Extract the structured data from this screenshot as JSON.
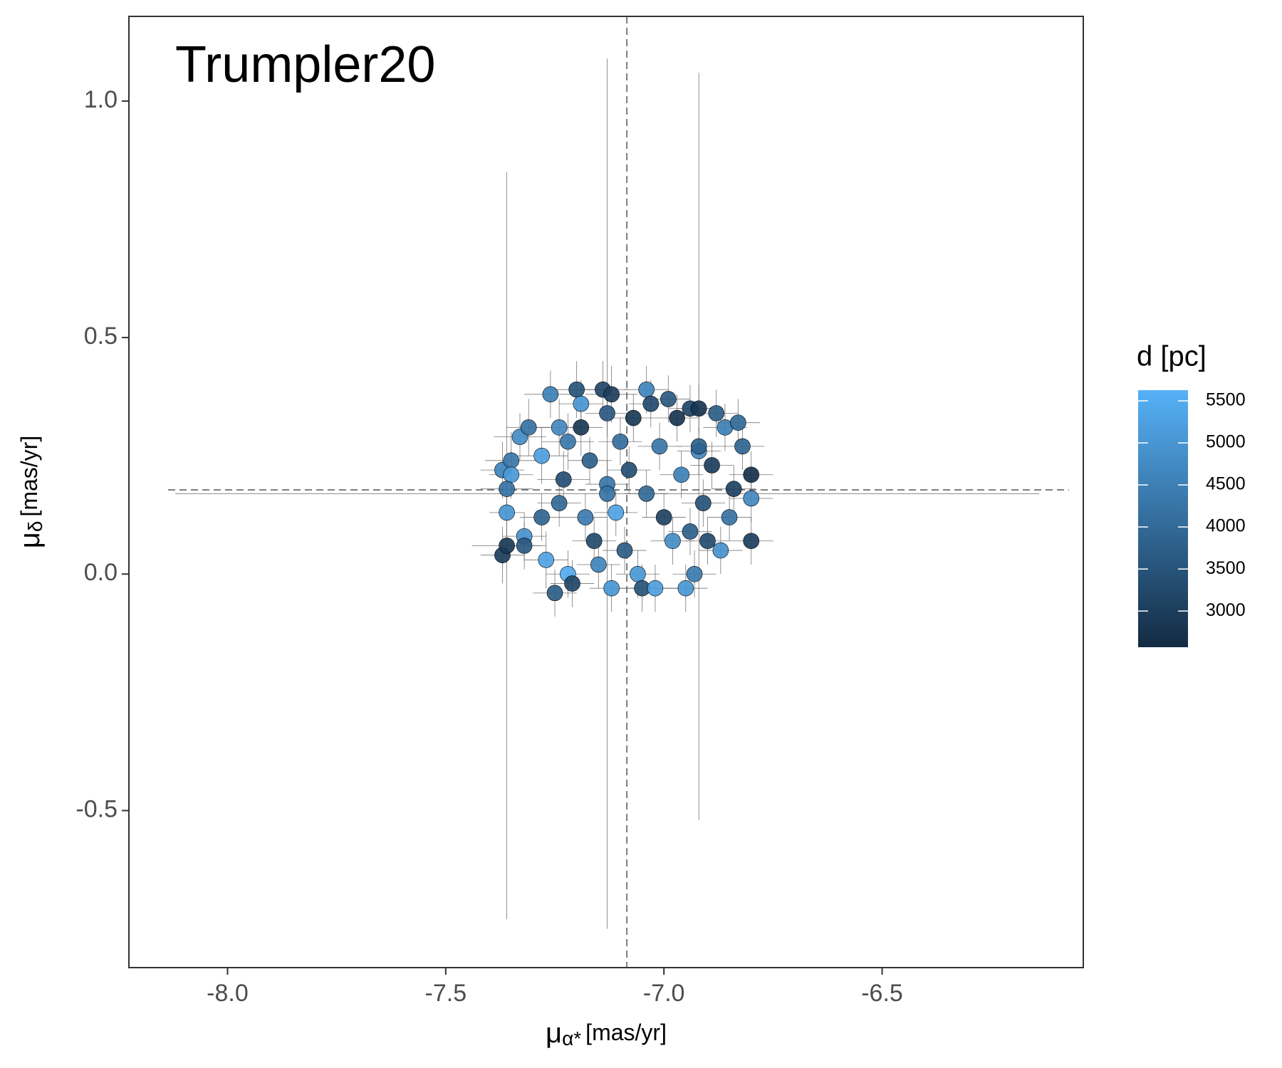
{
  "chart_data": {
    "type": "scatter",
    "title": "Trumpler20",
    "xlabel": {
      "symbol": "μ",
      "sub": "α*",
      "unit": "[mas/yr]"
    },
    "ylabel": {
      "symbol": "μ",
      "sub": "δ",
      "unit": "[mas/yr]"
    },
    "xlim": [
      -8.226,
      -6.039
    ],
    "ylim": [
      -0.832,
      1.179
    ],
    "xticks": [
      {
        "value": -8,
        "label": "-8.0"
      },
      -7.5,
      {
        "value": -7,
        "label": "-7.0"
      },
      -6.5
    ],
    "yticks": [
      -0.5,
      {
        "value": 0,
        "label": "0.0"
      },
      0.5,
      {
        "value": 1,
        "label": "1.0"
      }
    ],
    "vline": -7.085,
    "hline": 0.178,
    "colorbar": {
      "title": "d [pc]",
      "lim": [
        2570,
        5627
      ],
      "ticks": [
        3000,
        3500,
        4000,
        4500,
        5000,
        5500
      ],
      "colors": [
        "#132B43",
        "#56B1F7"
      ]
    },
    "x": [
      -7.37,
      -7.36,
      -7.37,
      -7.36,
      -7.35,
      -7.35,
      -7.36,
      -7.33,
      -7.31,
      -7.32,
      -7.32,
      -7.28,
      -7.27,
      -7.26,
      -7.25,
      -7.24,
      -7.24,
      -7.23,
      -7.22,
      -7.21,
      -7.2,
      -7.19,
      -7.19,
      -7.18,
      -7.17,
      -7.16,
      -7.15,
      -7.14,
      -7.13,
      -7.13,
      -7.12,
      -7.12,
      -7.11,
      -7.1,
      -7.09,
      -7.08,
      -7.07,
      -7.06,
      -7.05,
      -7.04,
      -7.04,
      -7.03,
      -7.02,
      -7.01,
      -7.0,
      -6.99,
      -6.98,
      -6.97,
      -6.96,
      -6.95,
      -6.94,
      -6.94,
      -6.93,
      -6.92,
      -6.92,
      -6.91,
      -6.9,
      -6.89,
      -6.88,
      -6.87,
      -6.86,
      -6.85,
      -6.84,
      -6.83,
      -6.82,
      -6.8,
      -6.8,
      -6.8,
      -7.22,
      -7.28,
      -7.13,
      -6.92
    ],
    "y": [
      0.04,
      0.06,
      0.22,
      0.13,
      0.24,
      0.21,
      0.18,
      0.29,
      0.31,
      0.08,
      0.06,
      0.25,
      0.03,
      0.38,
      -0.04,
      0.31,
      0.15,
      0.2,
      0.0,
      -0.02,
      0.39,
      0.36,
      0.31,
      0.12,
      0.24,
      0.07,
      0.02,
      0.39,
      0.34,
      0.19,
      -0.03,
      0.38,
      0.13,
      0.28,
      0.05,
      0.22,
      0.33,
      0.0,
      -0.03,
      0.39,
      0.17,
      0.36,
      -0.03,
      0.27,
      0.12,
      0.37,
      0.07,
      0.33,
      0.21,
      -0.03,
      0.35,
      0.09,
      0.0,
      0.35,
      0.26,
      0.15,
      0.07,
      0.23,
      0.34,
      0.05,
      0.31,
      0.12,
      0.18,
      0.32,
      0.27,
      0.21,
      0.16,
      0.07,
      0.28,
      0.12,
      0.17,
      0.27
    ],
    "d": [
      3000,
      2900,
      4600,
      5000,
      4300,
      5100,
      4200,
      4800,
      4200,
      4900,
      3600,
      5200,
      5300,
      4500,
      3700,
      4700,
      4000,
      3400,
      5500,
      3200,
      3500,
      5000,
      2900,
      4400,
      3800,
      3300,
      4600,
      3200,
      3600,
      4300,
      5000,
      3000,
      5300,
      4100,
      3700,
      3400,
      2900,
      5100,
      3500,
      4600,
      4000,
      3300,
      5200,
      4300,
      3100,
      3600,
      4800,
      2800,
      4500,
      5000,
      3200,
      3800,
      4400,
      2800,
      4700,
      3500,
      3300,
      3000,
      3700,
      4900,
      4500,
      4200,
      3100,
      4000,
      3900,
      2700,
      4700,
      3000,
      4300,
      3900,
      4200,
      3800
    ],
    "xerr": [
      0.05,
      0.08,
      0.05,
      0.04,
      0.06,
      0.05,
      0.06,
      0.06,
      0.05,
      0.05,
      0.05,
      0.06,
      0.05,
      0.06,
      0.05,
      0.05,
      0.05,
      0.06,
      0.05,
      0.05,
      0.06,
      0.05,
      0.05,
      0.05,
      0.05,
      0.05,
      0.05,
      0.06,
      0.05,
      0.05,
      0.05,
      0.06,
      0.05,
      0.05,
      0.05,
      0.05,
      0.05,
      0.05,
      0.05,
      0.05,
      0.05,
      0.05,
      0.05,
      0.05,
      0.05,
      0.05,
      0.05,
      0.05,
      0.05,
      0.05,
      0.05,
      0.05,
      0.05,
      0.05,
      0.05,
      0.05,
      0.05,
      0.05,
      0.05,
      0.05,
      0.05,
      0.05,
      0.05,
      0.05,
      0.05,
      0.05,
      0.05,
      0.05,
      0.06,
      0.05,
      0.99,
      0.05
    ],
    "yerr": [
      0.06,
      0.79,
      0.06,
      0.05,
      0.06,
      0.05,
      0.05,
      0.05,
      0.06,
      0.05,
      0.05,
      0.06,
      0.06,
      0.05,
      0.05,
      0.06,
      0.05,
      0.06,
      0.05,
      0.05,
      0.06,
      0.05,
      0.06,
      0.05,
      0.05,
      0.05,
      0.05,
      0.06,
      0.05,
      0.05,
      0.05,
      0.06,
      0.05,
      0.05,
      0.05,
      0.05,
      0.05,
      0.05,
      0.05,
      0.05,
      0.05,
      0.05,
      0.05,
      0.05,
      0.05,
      0.05,
      0.05,
      0.05,
      0.05,
      0.05,
      0.05,
      0.05,
      0.05,
      0.05,
      0.05,
      0.05,
      0.05,
      0.05,
      0.05,
      0.05,
      0.05,
      0.05,
      0.05,
      0.05,
      0.05,
      0.05,
      0.05,
      0.05,
      0.06,
      0.05,
      0.92,
      0.79
    ]
  }
}
